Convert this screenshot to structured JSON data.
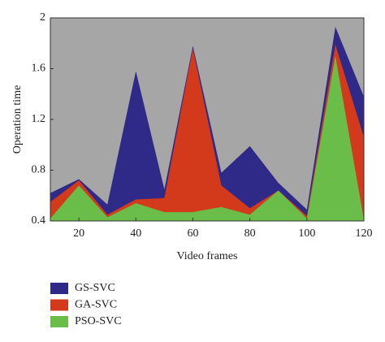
{
  "chart_data": {
    "type": "area",
    "x_label": "Video frames",
    "y_label": "Operation time",
    "x": [
      10,
      20,
      30,
      40,
      50,
      60,
      70,
      80,
      90,
      100,
      110,
      120
    ],
    "series": [
      {
        "name": "GS-SVC",
        "color": "#2f2a87",
        "values": [
          0.62,
          0.73,
          0.53,
          1.58,
          0.65,
          1.78,
          0.78,
          0.99,
          0.7,
          0.49,
          1.93,
          1.38
        ]
      },
      {
        "name": "GA-SVC",
        "color": "#d23a1b",
        "values": [
          0.55,
          0.72,
          0.45,
          0.57,
          0.58,
          1.76,
          0.68,
          0.5,
          0.64,
          0.44,
          1.79,
          1.06
        ]
      },
      {
        "name": "PSO-SVC",
        "color": "#6abd48",
        "values": [
          0.42,
          0.68,
          0.43,
          0.54,
          0.47,
          0.47,
          0.51,
          0.45,
          0.64,
          0.42,
          1.7,
          0.41
        ]
      }
    ],
    "xlim": [
      10,
      120
    ],
    "xticks": [
      20,
      40,
      60,
      80,
      100,
      120
    ],
    "ylim": [
      0.4,
      2
    ],
    "yticks": [
      0.4,
      0.8,
      1.2,
      1.6,
      2
    ],
    "background": "#a6a6a6"
  }
}
